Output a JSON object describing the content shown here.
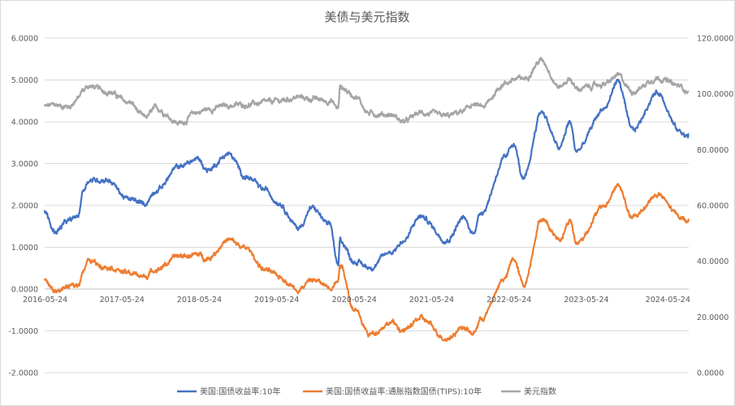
{
  "chart_data": {
    "type": "line",
    "title": "美债与美元指数",
    "x_tick_labels": [
      "2016-05-24",
      "2017-05-24",
      "2018-05-24",
      "2019-05-24",
      "2020-05-24",
      "2021-05-24",
      "2022-05-24",
      "2023-05-24",
      "2024-05-24"
    ],
    "y_left": {
      "tick_labels": [
        "-2.0000",
        "-1.0000",
        "0.0000",
        "1.0000",
        "2.0000",
        "3.0000",
        "4.0000",
        "5.0000",
        "6.0000"
      ],
      "range": [
        -2,
        6
      ]
    },
    "y_right": {
      "tick_labels": [
        "0.0000",
        "20.0000",
        "40.0000",
        "60.0000",
        "80.0000",
        "100.0000",
        "120.0000"
      ],
      "range": [
        0,
        120
      ]
    },
    "grid": true,
    "legend_position": "bottom",
    "series": [
      {
        "name": "美国:国债收益率:10年",
        "axis": "left",
        "color": "#4472C4",
        "points": [
          [
            "2016-05-24",
            1.85
          ],
          [
            "2016-07-08",
            1.37
          ],
          [
            "2016-09-15",
            1.62
          ],
          [
            "2016-10-30",
            1.75
          ],
          [
            "2016-11-20",
            2.35
          ],
          [
            "2016-12-16",
            2.6
          ],
          [
            "2017-03-13",
            2.62
          ],
          [
            "2017-06-26",
            2.14
          ],
          [
            "2017-09-08",
            2.04
          ],
          [
            "2017-11-01",
            2.37
          ],
          [
            "2018-02-21",
            2.94
          ],
          [
            "2018-05-17",
            3.11
          ],
          [
            "2018-07-01",
            2.85
          ],
          [
            "2018-10-08",
            3.23
          ],
          [
            "2018-12-31",
            2.68
          ],
          [
            "2019-03-27",
            2.38
          ],
          [
            "2019-06-01",
            2.08
          ],
          [
            "2019-09-03",
            1.46
          ],
          [
            "2019-11-08",
            1.94
          ],
          [
            "2020-01-31",
            1.51
          ],
          [
            "2020-03-09",
            0.54
          ],
          [
            "2020-03-18",
            1.18
          ],
          [
            "2020-05-24",
            0.66
          ],
          [
            "2020-08-04",
            0.52
          ],
          [
            "2020-11-15",
            0.9
          ],
          [
            "2021-01-12",
            1.15
          ],
          [
            "2021-03-31",
            1.74
          ],
          [
            "2021-08-04",
            1.17
          ],
          [
            "2021-10-21",
            1.7
          ],
          [
            "2021-12-03",
            1.34
          ],
          [
            "2022-01-15",
            1.85
          ],
          [
            "2022-05-06",
            3.12
          ],
          [
            "2022-06-14",
            3.49
          ],
          [
            "2022-08-01",
            2.6
          ],
          [
            "2022-10-24",
            4.25
          ],
          [
            "2023-01-18",
            3.37
          ],
          [
            "2023-03-08",
            4.0
          ],
          [
            "2023-04-06",
            3.3
          ],
          [
            "2023-08-21",
            4.34
          ],
          [
            "2023-10-19",
            4.99
          ],
          [
            "2023-12-27",
            3.79
          ],
          [
            "2024-04-25",
            4.7
          ],
          [
            "2024-08-05",
            3.78
          ],
          [
            "2024-09-13",
            3.65
          ],
          [
            "2024-09-18",
            3.72
          ]
        ]
      },
      {
        "name": "美国:国债收益率:通胀指数国债(TIPS):10年",
        "axis": "left",
        "color": "#ED7D31",
        "points": [
          [
            "2016-05-24",
            0.22
          ],
          [
            "2016-07-08",
            -0.05
          ],
          [
            "2016-09-15",
            0.05
          ],
          [
            "2016-10-30",
            0.1
          ],
          [
            "2016-11-20",
            0.45
          ],
          [
            "2016-12-16",
            0.67
          ],
          [
            "2017-03-13",
            0.55
          ],
          [
            "2017-06-26",
            0.38
          ],
          [
            "2017-09-08",
            0.3
          ],
          [
            "2017-11-01",
            0.48
          ],
          [
            "2018-02-21",
            0.79
          ],
          [
            "2018-05-17",
            0.82
          ],
          [
            "2018-07-01",
            0.74
          ],
          [
            "2018-10-08",
            1.17
          ],
          [
            "2018-12-31",
            0.97
          ],
          [
            "2019-03-27",
            0.47
          ],
          [
            "2019-06-01",
            0.3
          ],
          [
            "2019-09-03",
            0.0
          ],
          [
            "2019-11-08",
            0.22
          ],
          [
            "2020-01-31",
            0.06
          ],
          [
            "2020-03-09",
            0.2
          ],
          [
            "2020-03-18",
            0.62
          ],
          [
            "2020-05-24",
            -0.5
          ],
          [
            "2020-08-04",
            -1.08
          ],
          [
            "2020-11-15",
            -0.8
          ],
          [
            "2021-01-12",
            -1.0
          ],
          [
            "2021-03-31",
            -0.7
          ],
          [
            "2021-08-04",
            -1.18
          ],
          [
            "2021-10-21",
            -0.9
          ],
          [
            "2021-12-03",
            -1.08
          ],
          [
            "2022-01-15",
            -0.7
          ],
          [
            "2022-05-06",
            0.27
          ],
          [
            "2022-06-14",
            0.72
          ],
          [
            "2022-08-01",
            0.1
          ],
          [
            "2022-10-24",
            1.68
          ],
          [
            "2023-01-18",
            1.2
          ],
          [
            "2023-03-08",
            1.65
          ],
          [
            "2023-04-06",
            1.1
          ],
          [
            "2023-08-21",
            2.0
          ],
          [
            "2023-10-19",
            2.48
          ],
          [
            "2023-12-27",
            1.7
          ],
          [
            "2024-04-25",
            2.25
          ],
          [
            "2024-08-05",
            1.75
          ],
          [
            "2024-09-13",
            1.62
          ],
          [
            "2024-09-18",
            1.68
          ]
        ]
      },
      {
        "name": "美元指数",
        "axis": "right",
        "color": "#A5A5A5",
        "points": [
          [
            "2016-05-24",
            95.5
          ],
          [
            "2016-07-08",
            96.0
          ],
          [
            "2016-09-15",
            95.5
          ],
          [
            "2016-10-30",
            98.5
          ],
          [
            "2016-11-20",
            101.2
          ],
          [
            "2016-12-16",
            102.8
          ],
          [
            "2017-03-13",
            101.0
          ],
          [
            "2017-06-26",
            97.0
          ],
          [
            "2017-09-08",
            91.5
          ],
          [
            "2017-11-01",
            94.8
          ],
          [
            "2018-02-21",
            89.5
          ],
          [
            "2018-05-17",
            93.5
          ],
          [
            "2018-07-01",
            94.5
          ],
          [
            "2018-10-08",
            95.8
          ],
          [
            "2018-12-31",
            96.2
          ],
          [
            "2019-03-27",
            96.8
          ],
          [
            "2019-06-01",
            97.5
          ],
          [
            "2019-09-03",
            98.8
          ],
          [
            "2019-11-08",
            98.2
          ],
          [
            "2020-01-31",
            97.5
          ],
          [
            "2020-03-09",
            95.0
          ],
          [
            "2020-03-18",
            102.5
          ],
          [
            "2020-05-24",
            99.5
          ],
          [
            "2020-08-04",
            93.0
          ],
          [
            "2020-11-15",
            92.5
          ],
          [
            "2021-01-12",
            90.0
          ],
          [
            "2021-03-31",
            93.2
          ],
          [
            "2021-08-04",
            92.0
          ],
          [
            "2021-10-21",
            93.8
          ],
          [
            "2021-12-03",
            96.2
          ],
          [
            "2022-01-15",
            95.2
          ],
          [
            "2022-05-06",
            103.8
          ],
          [
            "2022-06-14",
            105.2
          ],
          [
            "2022-08-01",
            105.5
          ],
          [
            "2022-10-24",
            112.0
          ],
          [
            "2023-01-18",
            102.5
          ],
          [
            "2023-03-08",
            105.5
          ],
          [
            "2023-04-06",
            101.8
          ],
          [
            "2023-08-21",
            103.5
          ],
          [
            "2023-10-19",
            106.5
          ],
          [
            "2023-12-27",
            101.0
          ],
          [
            "2024-04-25",
            105.8
          ],
          [
            "2024-08-05",
            102.8
          ],
          [
            "2024-09-13",
            101.2
          ],
          [
            "2024-09-18",
            100.8
          ]
        ]
      }
    ]
  }
}
